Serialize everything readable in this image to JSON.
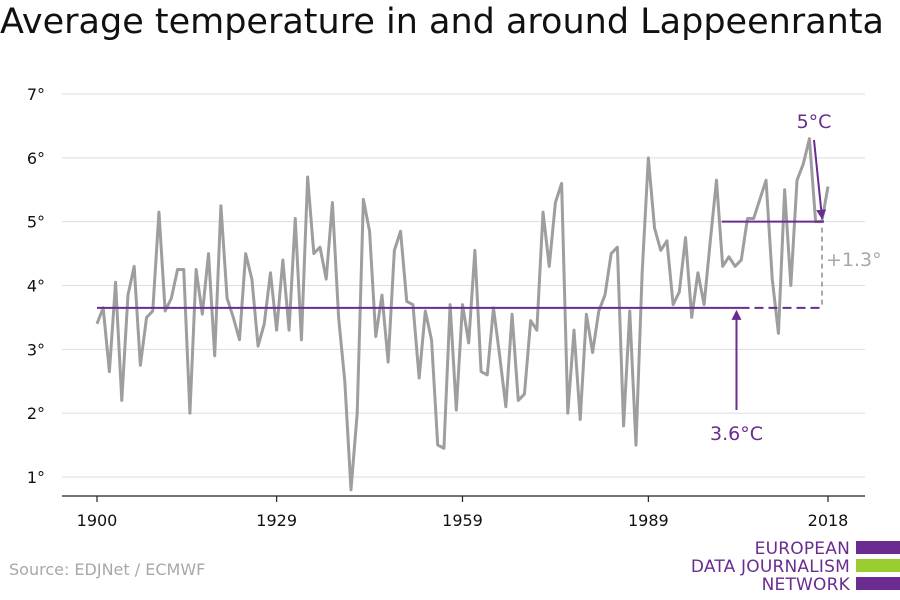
{
  "chart_data": {
    "type": "line",
    "title": "Average temperature in and around Lappeenranta",
    "xlabel": "",
    "ylabel": "",
    "xlim": [
      1900,
      2018
    ],
    "ylim": [
      0.7,
      7.2
    ],
    "x_ticks": [
      1900,
      1929,
      1959,
      1989,
      2018
    ],
    "x_tick_labels": [
      "1900",
      "1929",
      "1959",
      "1989",
      "2018"
    ],
    "y_ticks": [
      1,
      2,
      3,
      4,
      5,
      6,
      7
    ],
    "y_tick_labels": [
      "1°",
      "2°",
      "3°",
      "4°",
      "5°",
      "6°",
      "7°"
    ],
    "grid": "horizontal",
    "series": [
      {
        "color": "#9e9e9e",
        "x": [
          1900,
          1901,
          1902,
          1903,
          1904,
          1905,
          1906,
          1907,
          1908,
          1909,
          1910,
          1911,
          1912,
          1913,
          1914,
          1915,
          1916,
          1917,
          1918,
          1919,
          1920,
          1921,
          1922,
          1923,
          1924,
          1925,
          1926,
          1927,
          1928,
          1929,
          1930,
          1931,
          1932,
          1933,
          1934,
          1935,
          1936,
          1937,
          1938,
          1939,
          1940,
          1941,
          1942,
          1943,
          1944,
          1945,
          1946,
          1947,
          1948,
          1949,
          1950,
          1951,
          1952,
          1953,
          1954,
          1955,
          1956,
          1957,
          1958,
          1959,
          1960,
          1961,
          1962,
          1963,
          1964,
          1965,
          1966,
          1967,
          1968,
          1969,
          1970,
          1971,
          1972,
          1973,
          1974,
          1975,
          1976,
          1977,
          1978,
          1979,
          1980,
          1981,
          1982,
          1983,
          1984,
          1985,
          1986,
          1987,
          1988,
          1989,
          1990,
          1991,
          1992,
          1993,
          1994,
          1995,
          1996,
          1997,
          1998,
          1999,
          2000,
          2001,
          2002,
          2003,
          2004,
          2005,
          2006,
          2007,
          2008,
          2009,
          2010,
          2011,
          2012,
          2013,
          2014,
          2015,
          2016,
          2017,
          2018
        ],
        "values": [
          3.4,
          3.65,
          2.65,
          4.05,
          2.2,
          3.85,
          4.3,
          2.75,
          3.5,
          3.6,
          5.15,
          3.6,
          3.8,
          4.25,
          4.25,
          2.0,
          4.25,
          3.55,
          4.5,
          2.9,
          5.25,
          3.8,
          3.5,
          3.15,
          4.5,
          4.1,
          3.05,
          3.4,
          4.2,
          3.3,
          4.4,
          3.3,
          5.05,
          3.15,
          5.7,
          4.5,
          4.6,
          4.1,
          5.3,
          3.5,
          2.5,
          0.8,
          2.0,
          5.35,
          4.85,
          3.2,
          3.85,
          2.8,
          4.55,
          4.85,
          3.75,
          3.7,
          2.55,
          3.6,
          3.15,
          1.5,
          1.45,
          3.7,
          2.05,
          3.7,
          3.1,
          4.55,
          2.65,
          2.6,
          3.65,
          2.9,
          2.1,
          3.55,
          2.2,
          2.3,
          3.45,
          3.3,
          5.15,
          4.3,
          5.3,
          5.6,
          2.0,
          3.3,
          1.9,
          3.55,
          2.95,
          3.6,
          3.85,
          4.5,
          4.6,
          1.8,
          3.6,
          1.5,
          4.2,
          6.0,
          4.9,
          4.55,
          4.7,
          3.7,
          3.9,
          4.75,
          3.5,
          4.2,
          3.7,
          4.7,
          5.65,
          4.3,
          4.45,
          4.3,
          4.4,
          5.05,
          5.05,
          5.35,
          5.65,
          4.1,
          3.25,
          5.5,
          4.0,
          5.65,
          5.9,
          6.3,
          5.0,
          5.0,
          5.55
        ]
      }
    ],
    "reference_lines": [
      {
        "label": "3.6°C",
        "value": 3.65,
        "from": 1900,
        "to": 2000,
        "dashed_to": 2018,
        "color": "#6a2c91"
      },
      {
        "label": "5°C",
        "value": 5.0,
        "from": 2001,
        "to": 2018,
        "color": "#6a2c91"
      }
    ],
    "difference_label": "+1.3°",
    "difference_color": "#a8a8a8"
  },
  "source": "Source: EDJNet / ECMWF",
  "logo": {
    "lines": [
      "EUROPEAN",
      "DATA JOURNALISM",
      "NETWORK"
    ],
    "text_color": "#6a2c91",
    "bar_colors": [
      "#6a2c91",
      "#9acd32",
      "#6a2c91"
    ]
  }
}
